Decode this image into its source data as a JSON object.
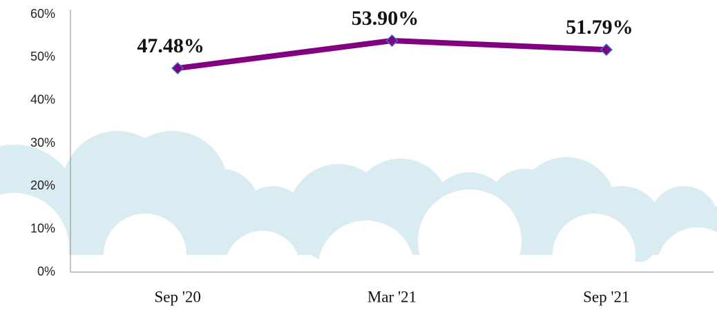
{
  "chart_data": {
    "type": "line",
    "categories": [
      "Sep '20",
      "Mar '21",
      "Sep '21"
    ],
    "series": [
      {
        "color": "#800080",
        "values": [
          47.48,
          53.9,
          51.79
        ],
        "value_labels": [
          "47.48%",
          "53.90%",
          "51.79%"
        ]
      }
    ],
    "ylim": [
      0,
      60
    ],
    "yticks": [
      {
        "value": 0,
        "label": "0%"
      },
      {
        "value": 10,
        "label": "10%"
      },
      {
        "value": 20,
        "label": "20%"
      },
      {
        "value": 30,
        "label": "30%"
      },
      {
        "value": 40,
        "label": "40%"
      },
      {
        "value": 50,
        "label": "50%"
      },
      {
        "value": 60,
        "label": "60%"
      }
    ],
    "grid": false
  }
}
